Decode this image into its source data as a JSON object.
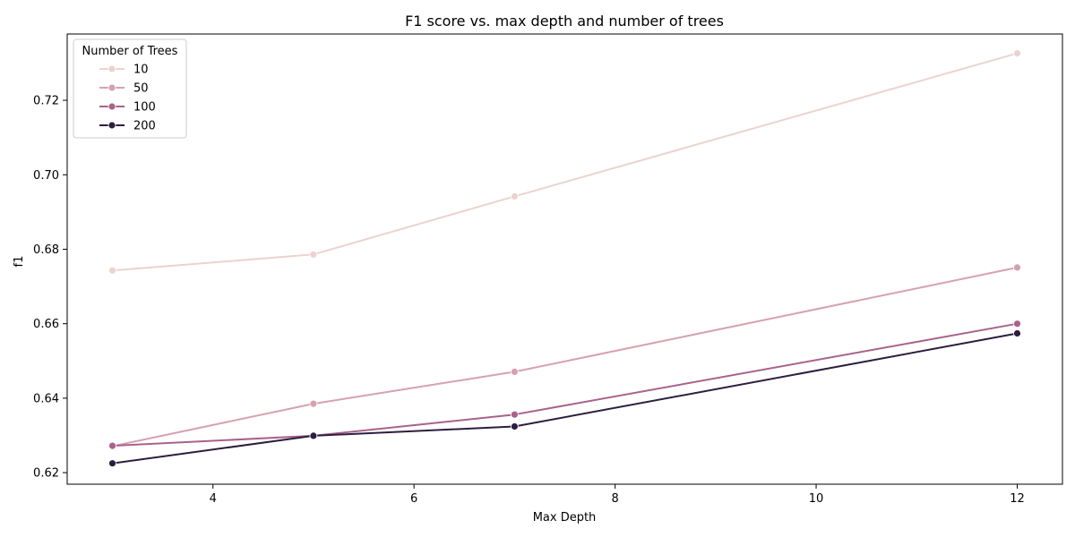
{
  "chart_data": {
    "type": "line",
    "title": "F1 score vs. max depth and number of trees",
    "xlabel": "Max Depth",
    "ylabel": "f1",
    "x": [
      3,
      5,
      7,
      12
    ],
    "xlim": [
      2.55,
      12.45
    ],
    "ylim": [
      0.6169,
      0.7378
    ],
    "xticks": [
      4,
      6,
      8,
      10,
      12
    ],
    "yticks": [
      0.62,
      0.64,
      0.66,
      0.68,
      0.7,
      0.72
    ],
    "ytick_labels": [
      "0.62",
      "0.64",
      "0.66",
      "0.68",
      "0.70",
      "0.72"
    ],
    "grid": false,
    "legend": {
      "title": "Number of Trees",
      "placement": "top-left"
    },
    "series": [
      {
        "name": "10",
        "color": "#ebd3ce",
        "values": [
          0.6743,
          0.6786,
          0.6942,
          0.7326
        ]
      },
      {
        "name": "50",
        "color": "#d6a1af",
        "values": [
          0.6271,
          0.6385,
          0.6471,
          0.6751
        ]
      },
      {
        "name": "100",
        "color": "#a9628a",
        "values": [
          0.6272,
          0.6299,
          0.6356,
          0.66
        ]
      },
      {
        "name": "200",
        "color": "#2c1e3e",
        "values": [
          0.6225,
          0.6299,
          0.6324,
          0.6574
        ]
      }
    ]
  }
}
